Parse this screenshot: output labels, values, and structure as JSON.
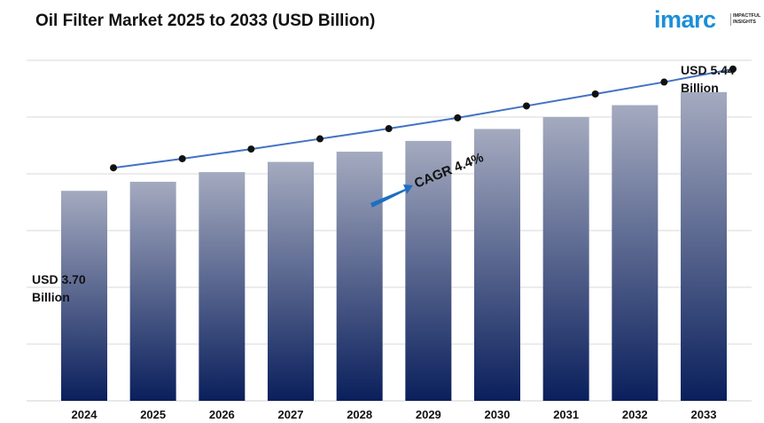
{
  "title": "Oil Filter Market 2025 to 2033 (USD Billion)",
  "logo": {
    "word": "imarc",
    "tagline": "IMPACTFUL INSIGHTS"
  },
  "colors": {
    "bar_top": "#a4aabf",
    "bar_bottom": "#0a1f5c",
    "line": "#4472c4",
    "marker": "#111111",
    "arrow": "#1f6fc0",
    "grid": "#d9d9d9"
  },
  "chart_data": {
    "type": "bar",
    "categories": [
      "2024",
      "2025",
      "2026",
      "2027",
      "2028",
      "2029",
      "2030",
      "2031",
      "2032",
      "2033"
    ],
    "values": [
      3.7,
      3.86,
      4.03,
      4.21,
      4.39,
      4.58,
      4.79,
      5.0,
      5.21,
      5.44
    ],
    "overlay": "line with markers following the bar tops",
    "grid": true,
    "ylim": [
      0,
      6
    ],
    "annotations": {
      "start_label": [
        "USD 3.70",
        "Billion"
      ],
      "end_label": [
        "USD 5.44",
        "Billion"
      ],
      "cagr": "CAGR 4.4%"
    }
  }
}
